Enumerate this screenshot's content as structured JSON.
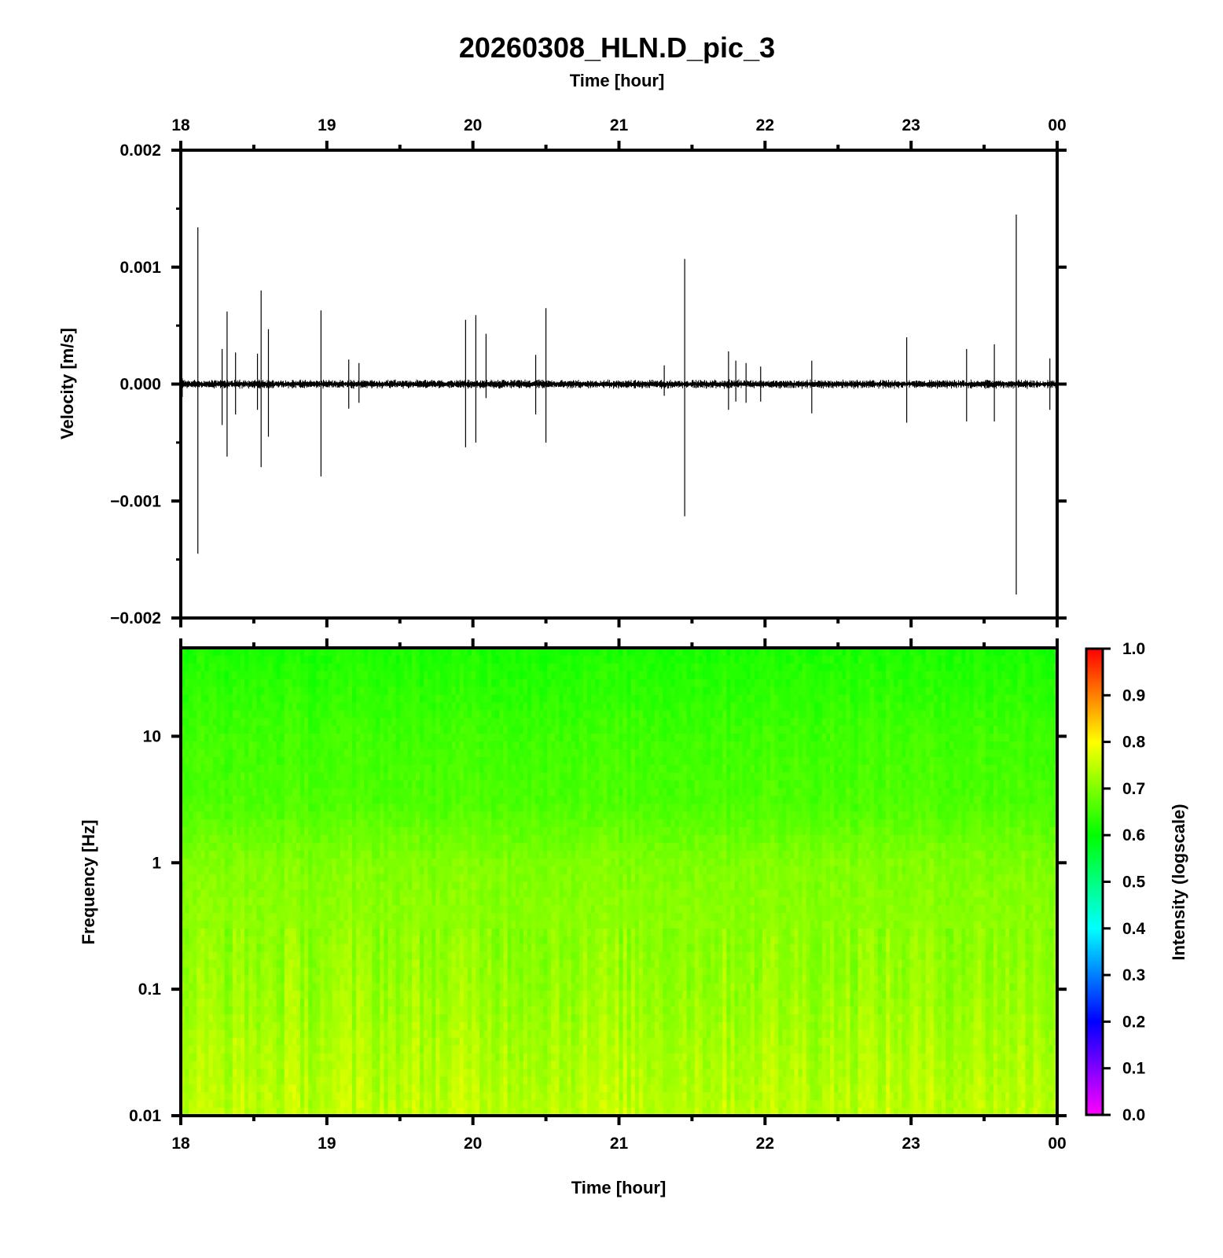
{
  "chart_data": [
    {
      "type": "line",
      "title": "20260308_HLN.D_pic_3",
      "top_xlabel": "Time [hour]",
      "ylabel": "Velocity [m/s]",
      "x_ticks": [
        "18",
        "19",
        "20",
        "21",
        "22",
        "23",
        "00"
      ],
      "xlim_hours": [
        18,
        24
      ],
      "y_ticks": [
        "0.002",
        "0.001",
        "0.000",
        "−0.001",
        "−0.002"
      ],
      "ylim": [
        -0.002,
        0.002
      ],
      "baseline_noise_amplitude": 2e-05,
      "line_color": "#000000",
      "spikes": [
        {
          "t": 18.01,
          "max": 5e-05,
          "min": -0.00011
        },
        {
          "t": 18.117,
          "max": 0.00134,
          "min": -0.00145
        },
        {
          "t": 18.283,
          "max": 0.0003,
          "min": -0.00035
        },
        {
          "t": 18.317,
          "max": 0.00062,
          "min": -0.00062
        },
        {
          "t": 18.375,
          "max": 0.00027,
          "min": -0.00026
        },
        {
          "t": 18.525,
          "max": 0.00026,
          "min": -0.00022
        },
        {
          "t": 18.55,
          "max": 0.0008,
          "min": -0.00071
        },
        {
          "t": 18.6,
          "max": 0.00047,
          "min": -0.00045
        },
        {
          "t": 18.96,
          "max": 0.00063,
          "min": -0.00079
        },
        {
          "t": 19.15,
          "max": 0.00021,
          "min": -0.00021
        },
        {
          "t": 19.22,
          "max": 0.00018,
          "min": -0.00016
        },
        {
          "t": 19.95,
          "max": 0.00055,
          "min": -0.00054
        },
        {
          "t": 20.02,
          "max": 0.00059,
          "min": -0.0005
        },
        {
          "t": 20.09,
          "max": 0.00043,
          "min": -0.00012
        },
        {
          "t": 20.43,
          "max": 0.00025,
          "min": -0.00026
        },
        {
          "t": 20.5,
          "max": 0.00065,
          "min": -0.0005
        },
        {
          "t": 21.31,
          "max": 0.00016,
          "min": -0.0001
        },
        {
          "t": 21.45,
          "max": 0.00107,
          "min": -0.00113
        },
        {
          "t": 21.75,
          "max": 0.00028,
          "min": -0.00022
        },
        {
          "t": 21.8,
          "max": 0.0002,
          "min": -0.00015
        },
        {
          "t": 21.87,
          "max": 0.00018,
          "min": -0.00016
        },
        {
          "t": 21.97,
          "max": 0.00015,
          "min": -0.00015
        },
        {
          "t": 22.32,
          "max": 0.0002,
          "min": -0.00025
        },
        {
          "t": 22.97,
          "max": 0.0004,
          "min": -0.00033
        },
        {
          "t": 23.38,
          "max": 0.0003,
          "min": -0.00032
        },
        {
          "t": 23.57,
          "max": 0.00034,
          "min": -0.00032
        },
        {
          "t": 23.72,
          "max": 0.00145,
          "min": -0.0018
        },
        {
          "t": 23.95,
          "max": 0.00022,
          "min": -0.00022
        }
      ]
    },
    {
      "type": "heatmap",
      "xlabel": "Time [hour]",
      "ylabel": "Frequency [Hz]",
      "x_ticks": [
        "18",
        "19",
        "20",
        "21",
        "22",
        "23",
        "00"
      ],
      "xlim_hours": [
        18,
        24
      ],
      "y_scale": "log",
      "y_ticks": [
        "10",
        "1",
        "0.1",
        "0.01"
      ],
      "ylim_hz": [
        0.01,
        50
      ],
      "colorbar": {
        "label": "Intensity (logscale)",
        "ticks": [
          "1.0",
          "0.9",
          "0.8",
          "0.7",
          "0.6",
          "0.5",
          "0.4",
          "0.3",
          "0.2",
          "0.1",
          "0.0"
        ],
        "range": [
          0,
          1
        ],
        "colors": [
          "#ff00ff",
          "#0000ff",
          "#00ffff",
          "#00ff00",
          "#ffff00",
          "#ff0000"
        ]
      },
      "intensity_profile": [
        {
          "freq_hz": 50,
          "intensity": 0.62
        },
        {
          "freq_hz": 10,
          "intensity": 0.65
        },
        {
          "freq_hz": 3,
          "intensity": 0.66
        },
        {
          "freq_hz": 1,
          "intensity": 0.7
        },
        {
          "freq_hz": 0.1,
          "intensity": 0.72
        },
        {
          "freq_hz": 0.01,
          "intensity": 0.75
        }
      ]
    }
  ]
}
